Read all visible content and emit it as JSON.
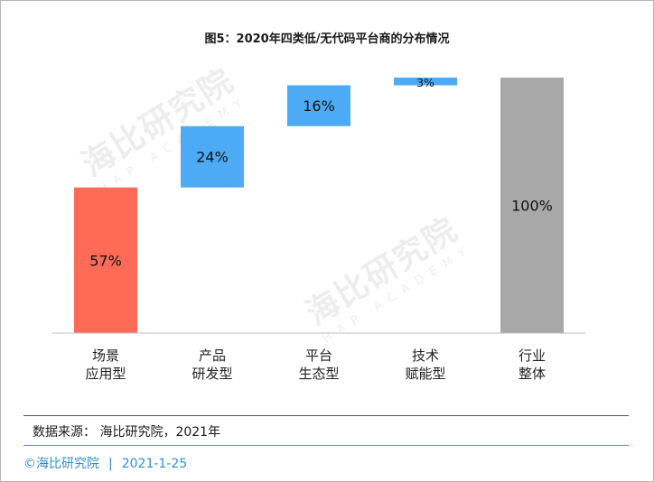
{
  "chart_data": {
    "type": "bar",
    "subtype": "waterfall",
    "title": "图5：2020年四类低/无代码平台商的分布情况",
    "categories": [
      [
        "场景",
        "应用型"
      ],
      [
        "产品",
        "研发型"
      ],
      [
        "平台",
        "生态型"
      ],
      [
        "技术",
        "赋能型"
      ],
      [
        "行业",
        "整体"
      ]
    ],
    "values": [
      57,
      24,
      16,
      3,
      100
    ],
    "value_labels": [
      "57%",
      "24%",
      "16%",
      "3%",
      "100%"
    ],
    "bar_kind": [
      "start",
      "increment",
      "increment",
      "increment",
      "total"
    ],
    "colors": [
      "#ff6b57",
      "#4daaf5",
      "#4daaf5",
      "#4daaf5",
      "#a8a8a8"
    ],
    "ylim": [
      0,
      100
    ],
    "grid": false,
    "legend": "none"
  },
  "source": "数据来源： 海比研究院，2021年",
  "footer": {
    "brand": "©海比研究院",
    "separator": "|",
    "date": "2021-1-25"
  },
  "watermark": {
    "name": "海比研究院",
    "english": "HAP ACADEMY"
  }
}
